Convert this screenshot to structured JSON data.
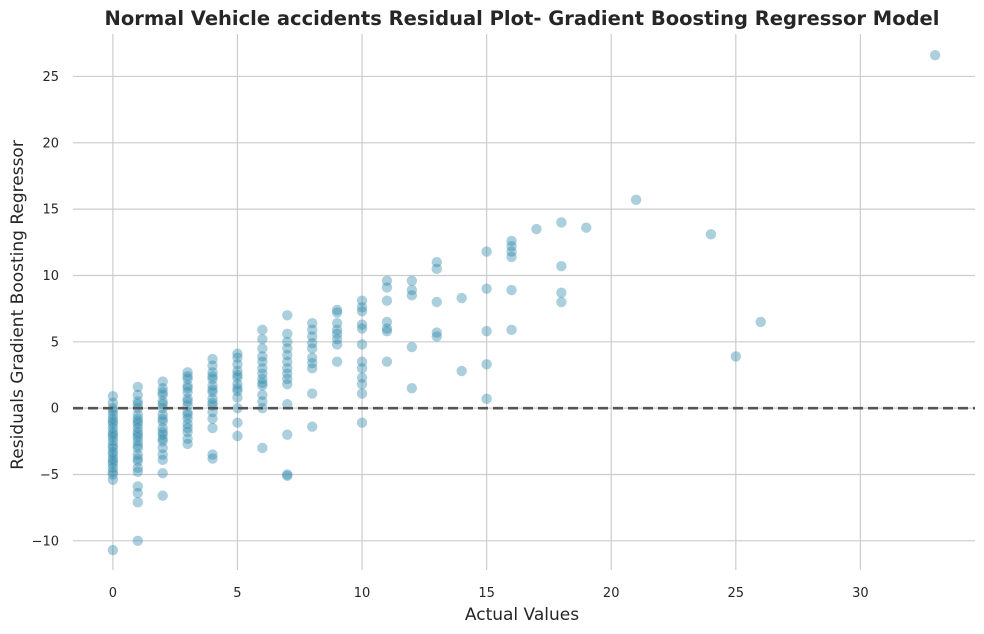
{
  "chart_data": {
    "type": "scatter",
    "title": "Normal Vehicle accidents Residual Plot- Gradient Boosting Regressor Model",
    "xlabel": "Actual Values",
    "ylabel": "Residuals Gradient Boosting Regressor",
    "xlim": [
      -1.6,
      34.6
    ],
    "ylim": [
      -12.2,
      28.2
    ],
    "xticks": [
      0,
      5,
      10,
      15,
      20,
      25,
      30
    ],
    "yticks": [
      -10,
      -5,
      0,
      5,
      10,
      15,
      20,
      25
    ],
    "xtick_labels": [
      "0",
      "5",
      "10",
      "15",
      "20",
      "25",
      "30"
    ],
    "ytick_labels": [
      "−10",
      "−5",
      "0",
      "5",
      "10",
      "15",
      "20",
      "25"
    ],
    "grid": true,
    "reference_line": {
      "y": 0,
      "style": "dashed",
      "color": "#555555"
    },
    "point_color": "#2e86ab",
    "point_opacity": 0.4,
    "points": [
      [
        0,
        -10.7
      ],
      [
        0,
        -5.4
      ],
      [
        0,
        -5.0
      ],
      [
        0,
        -4.5
      ],
      [
        0,
        -4.0
      ],
      [
        0,
        -3.5
      ],
      [
        0,
        -3.0
      ],
      [
        0,
        -2.5
      ],
      [
        0,
        -2.0
      ],
      [
        0,
        -1.5
      ],
      [
        0,
        -1.0
      ],
      [
        0,
        -0.5
      ],
      [
        0,
        0.0
      ],
      [
        0,
        0.4
      ],
      [
        0,
        0.9
      ],
      [
        0,
        -4.8
      ],
      [
        0,
        -3.8
      ],
      [
        0,
        -2.8
      ],
      [
        0,
        -1.8
      ],
      [
        0,
        -0.8
      ],
      [
        0,
        -2.2
      ],
      [
        0,
        -1.2
      ],
      [
        0,
        -0.2
      ],
      [
        0,
        -3.3
      ],
      [
        0,
        -4.2
      ],
      [
        1,
        -10.0
      ],
      [
        1,
        -7.1
      ],
      [
        1,
        -6.4
      ],
      [
        1,
        -5.9
      ],
      [
        1,
        -4.8
      ],
      [
        1,
        -4.5
      ],
      [
        1,
        -4.0
      ],
      [
        1,
        -3.5
      ],
      [
        1,
        -3.0
      ],
      [
        1,
        -2.5
      ],
      [
        1,
        -2.0
      ],
      [
        1,
        -1.5
      ],
      [
        1,
        -1.0
      ],
      [
        1,
        -0.5
      ],
      [
        1,
        0.0
      ],
      [
        1,
        0.5
      ],
      [
        1,
        1.0
      ],
      [
        1,
        1.6
      ],
      [
        1,
        -3.8
      ],
      [
        1,
        -2.8
      ],
      [
        1,
        -1.8
      ],
      [
        1,
        -0.8
      ],
      [
        1,
        0.3
      ],
      [
        1,
        -2.2
      ],
      [
        1,
        -1.2
      ],
      [
        2,
        -6.6
      ],
      [
        2,
        -4.9
      ],
      [
        2,
        -3.9
      ],
      [
        2,
        -3.5
      ],
      [
        2,
        -3.0
      ],
      [
        2,
        -2.5
      ],
      [
        2,
        -2.0
      ],
      [
        2,
        -1.5
      ],
      [
        2,
        -1.0
      ],
      [
        2,
        -0.5
      ],
      [
        2,
        0.0
      ],
      [
        2,
        0.5
      ],
      [
        2,
        1.0
      ],
      [
        2,
        1.5
      ],
      [
        2,
        2.0
      ],
      [
        2,
        -1.8
      ],
      [
        2,
        -0.8
      ],
      [
        2,
        0.3
      ],
      [
        2,
        1.2
      ],
      [
        2,
        -2.3
      ],
      [
        3,
        -2.7
      ],
      [
        3,
        -2.3
      ],
      [
        3,
        -1.8
      ],
      [
        3,
        -1.2
      ],
      [
        3,
        -0.8
      ],
      [
        3,
        -0.3
      ],
      [
        3,
        0.2
      ],
      [
        3,
        0.7
      ],
      [
        3,
        1.2
      ],
      [
        3,
        1.7
      ],
      [
        3,
        2.2
      ],
      [
        3,
        2.7
      ],
      [
        3,
        -1.5
      ],
      [
        3,
        -0.5
      ],
      [
        3,
        0.5
      ],
      [
        3,
        1.5
      ],
      [
        3,
        2.4
      ],
      [
        4,
        -3.8
      ],
      [
        4,
        -3.5
      ],
      [
        4,
        -1.5
      ],
      [
        4,
        -0.8
      ],
      [
        4,
        -0.3
      ],
      [
        4,
        0.2
      ],
      [
        4,
        0.7
      ],
      [
        4,
        1.2
      ],
      [
        4,
        1.7
      ],
      [
        4,
        2.2
      ],
      [
        4,
        2.7
      ],
      [
        4,
        3.2
      ],
      [
        4,
        3.7
      ],
      [
        4,
        0.4
      ],
      [
        4,
        1.4
      ],
      [
        4,
        2.4
      ],
      [
        5,
        -2.1
      ],
      [
        5,
        -1.1
      ],
      [
        5,
        0.0
      ],
      [
        5,
        0.8
      ],
      [
        5,
        1.3
      ],
      [
        5,
        1.8
      ],
      [
        5,
        2.3
      ],
      [
        5,
        2.8
      ],
      [
        5,
        3.3
      ],
      [
        5,
        3.8
      ],
      [
        5,
        4.1
      ],
      [
        5,
        1.5
      ],
      [
        5,
        2.5
      ],
      [
        6,
        -3.0
      ],
      [
        6,
        0.0
      ],
      [
        6,
        0.5
      ],
      [
        6,
        1.0
      ],
      [
        6,
        1.7
      ],
      [
        6,
        2.2
      ],
      [
        6,
        2.6
      ],
      [
        6,
        3.0
      ],
      [
        6,
        3.5
      ],
      [
        6,
        3.9
      ],
      [
        6,
        4.5
      ],
      [
        6,
        5.2
      ],
      [
        6,
        5.9
      ],
      [
        6,
        1.9
      ],
      [
        7,
        -5.1
      ],
      [
        7,
        -5.0
      ],
      [
        7,
        -2.0
      ],
      [
        7,
        0.3
      ],
      [
        7,
        1.8
      ],
      [
        7,
        2.2
      ],
      [
        7,
        3.0
      ],
      [
        7,
        3.5
      ],
      [
        7,
        4.0
      ],
      [
        7,
        4.5
      ],
      [
        7,
        5.0
      ],
      [
        7,
        5.6
      ],
      [
        7,
        7.0
      ],
      [
        7,
        2.6
      ],
      [
        8,
        -1.4
      ],
      [
        8,
        1.1
      ],
      [
        8,
        3.0
      ],
      [
        8,
        3.8
      ],
      [
        8,
        4.5
      ],
      [
        8,
        4.9
      ],
      [
        8,
        5.4
      ],
      [
        8,
        5.9
      ],
      [
        8,
        6.4
      ],
      [
        8,
        3.4
      ],
      [
        9,
        3.5
      ],
      [
        9,
        4.8
      ],
      [
        9,
        5.2
      ],
      [
        9,
        5.6
      ],
      [
        9,
        5.9
      ],
      [
        9,
        6.4
      ],
      [
        9,
        7.2
      ],
      [
        9,
        7.4
      ],
      [
        10,
        -1.1
      ],
      [
        10,
        1.1
      ],
      [
        10,
        1.8
      ],
      [
        10,
        2.3
      ],
      [
        10,
        3.0
      ],
      [
        10,
        3.5
      ],
      [
        10,
        4.8
      ],
      [
        10,
        6.0
      ],
      [
        10,
        6.3
      ],
      [
        10,
        7.3
      ],
      [
        10,
        7.6
      ],
      [
        10,
        8.1
      ],
      [
        11,
        3.5
      ],
      [
        11,
        5.8
      ],
      [
        11,
        6.0
      ],
      [
        11,
        6.5
      ],
      [
        11,
        8.1
      ],
      [
        11,
        9.1
      ],
      [
        11,
        9.6
      ],
      [
        12,
        1.5
      ],
      [
        12,
        4.6
      ],
      [
        12,
        8.5
      ],
      [
        12,
        8.9
      ],
      [
        12,
        9.6
      ],
      [
        13,
        5.4
      ],
      [
        13,
        5.7
      ],
      [
        13,
        8.0
      ],
      [
        13,
        10.5
      ],
      [
        13,
        11.0
      ],
      [
        14,
        2.8
      ],
      [
        14,
        8.3
      ],
      [
        15,
        0.7
      ],
      [
        15,
        3.3
      ],
      [
        15,
        5.8
      ],
      [
        15,
        9.0
      ],
      [
        15,
        11.8
      ],
      [
        16,
        5.9
      ],
      [
        16,
        8.9
      ],
      [
        16,
        11.4
      ],
      [
        16,
        11.8
      ],
      [
        16,
        12.2
      ],
      [
        16,
        12.6
      ],
      [
        17,
        13.5
      ],
      [
        18,
        8.0
      ],
      [
        18,
        8.7
      ],
      [
        18,
        10.7
      ],
      [
        18,
        14.0
      ],
      [
        19,
        13.6
      ],
      [
        21,
        15.7
      ],
      [
        24,
        13.1
      ],
      [
        25,
        3.9
      ],
      [
        26,
        6.5
      ],
      [
        33,
        26.6
      ]
    ]
  }
}
